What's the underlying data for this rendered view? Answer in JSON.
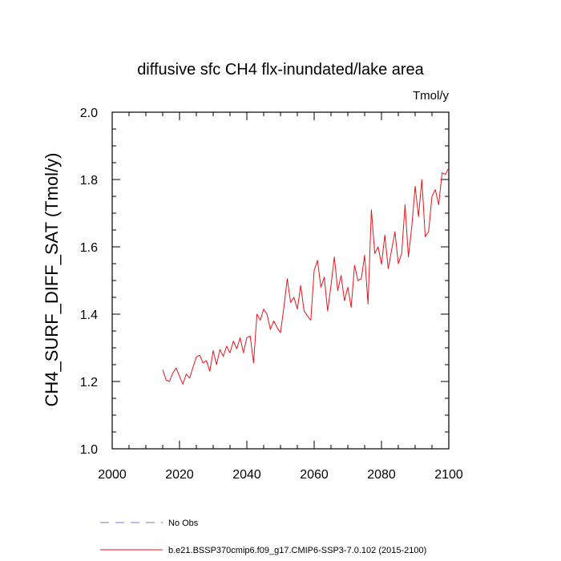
{
  "chart_data": {
    "type": "line",
    "title": "diffusive sfc CH4 flx-inundated/lake area",
    "units": "Tmol/y",
    "xlabel": "",
    "ylabel": "CH4_SURF_DIFF_SAT  (Tmol/y)",
    "xlim": [
      2000,
      2100
    ],
    "ylim": [
      1.0,
      2.0
    ],
    "x_ticks": [
      "2000",
      "2020",
      "2040",
      "2060",
      "2080",
      "2100"
    ],
    "y_ticks": [
      "1.0",
      "1.2",
      "1.4",
      "1.6",
      "1.8",
      "2.0"
    ],
    "grid": false,
    "legend_position": "bottom",
    "series": [
      {
        "name": "b.e21.BSSP370cmip6.f09_g17.CMIP6-SSP3-7.0.102 (2015-2100)",
        "color": "#e8141c",
        "style": "solid",
        "x": [
          2015,
          2016,
          2017,
          2018,
          2019,
          2020,
          2021,
          2022,
          2023,
          2024,
          2025,
          2026,
          2027,
          2028,
          2029,
          2030,
          2031,
          2032,
          2033,
          2034,
          2035,
          2036,
          2037,
          2038,
          2039,
          2040,
          2041,
          2042,
          2043,
          2044,
          2045,
          2046,
          2047,
          2048,
          2049,
          2050,
          2051,
          2052,
          2053,
          2054,
          2055,
          2056,
          2057,
          2058,
          2059,
          2060,
          2061,
          2062,
          2063,
          2064,
          2065,
          2066,
          2067,
          2068,
          2069,
          2070,
          2071,
          2072,
          2073,
          2074,
          2075,
          2076,
          2077,
          2078,
          2079,
          2080,
          2081,
          2082,
          2083,
          2084,
          2085,
          2086,
          2087,
          2088,
          2089,
          2090,
          2091,
          2092,
          2093,
          2094,
          2095,
          2096,
          2097,
          2098,
          2099,
          2100
        ],
        "y": [
          1.235,
          1.205,
          1.2,
          1.225,
          1.24,
          1.215,
          1.192,
          1.222,
          1.21,
          1.242,
          1.273,
          1.278,
          1.255,
          1.262,
          1.23,
          1.292,
          1.25,
          1.295,
          1.275,
          1.305,
          1.285,
          1.32,
          1.297,
          1.33,
          1.285,
          1.33,
          1.335,
          1.255,
          1.4,
          1.382,
          1.415,
          1.4,
          1.355,
          1.38,
          1.36,
          1.345,
          1.42,
          1.505,
          1.435,
          1.45,
          1.415,
          1.485,
          1.41,
          1.395,
          1.382,
          1.53,
          1.56,
          1.48,
          1.51,
          1.41,
          1.485,
          1.57,
          1.47,
          1.515,
          1.44,
          1.48,
          1.42,
          1.545,
          1.5,
          1.505,
          1.575,
          1.43,
          1.71,
          1.58,
          1.6,
          1.548,
          1.635,
          1.535,
          1.59,
          1.645,
          1.55,
          1.58,
          1.725,
          1.57,
          1.66,
          1.78,
          1.69,
          1.8,
          1.63,
          1.645,
          1.75,
          1.77,
          1.725,
          1.82,
          1.815,
          1.835
        ]
      },
      {
        "name": "No Obs",
        "color": "#7878e6",
        "style": "dashed",
        "x": [],
        "y": []
      }
    ]
  }
}
